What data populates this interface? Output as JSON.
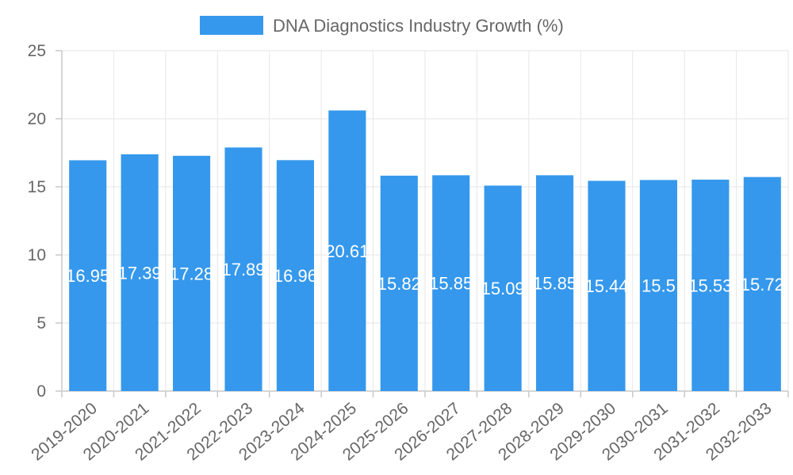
{
  "chart_data": {
    "type": "bar",
    "title": "",
    "xlabel": "",
    "ylabel": "",
    "legend": "top-center",
    "grid": true,
    "ylim": [
      0,
      25
    ],
    "yticks": [
      "0",
      "5",
      "10",
      "15",
      "20",
      "25"
    ],
    "bar_color": "#3598ec",
    "series": [
      {
        "name": "DNA Diagnostics Industry Growth (%)",
        "values": [
          16.95,
          17.39,
          17.28,
          17.89,
          16.96,
          20.61,
          15.82,
          15.85,
          15.09,
          15.85,
          15.44,
          15.5,
          15.53,
          15.72
        ],
        "labels": [
          "16.95",
          "17.39",
          "17.28",
          "17.89",
          "16.96",
          "20.61",
          "15.82",
          "15.85",
          "15.09",
          "15.85",
          "15.44",
          "15.5",
          "15.53",
          "15.72"
        ]
      }
    ],
    "categories": [
      "2019-2020",
      "2020-2021",
      "2021-2022",
      "2022-2023",
      "2023-2024",
      "2024-2025",
      "2025-2026",
      "2026-2027",
      "2027-2028",
      "2028-2029",
      "2029-2030",
      "2030-2031",
      "2031-2032",
      "2032-2033"
    ]
  }
}
